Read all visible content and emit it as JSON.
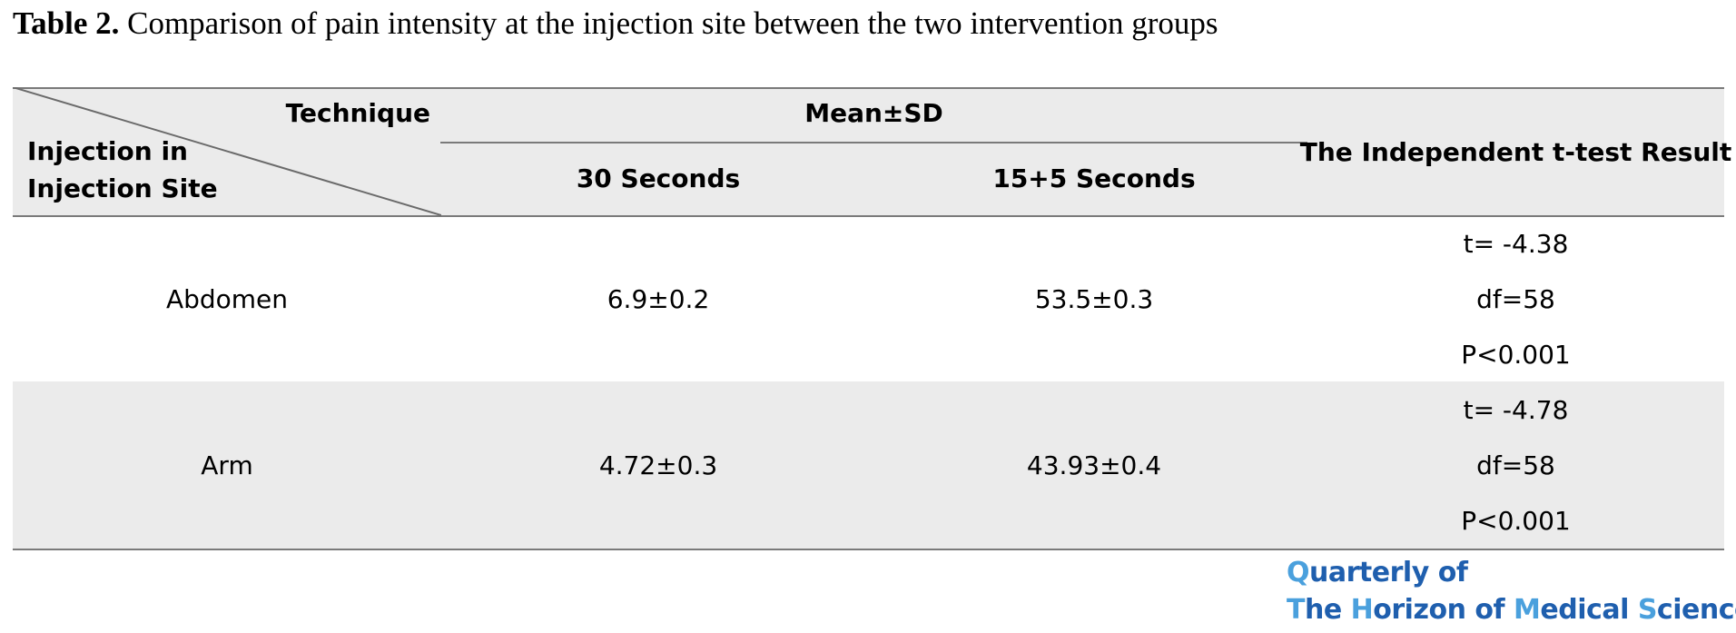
{
  "caption": {
    "label": "Table 2.",
    "text": "Comparison of pain intensity at the injection site between the two intervention groups"
  },
  "table": {
    "header": {
      "technique": "Technique",
      "site_line1": "Injection in",
      "site_line2": "Injection Site",
      "mean_sd": "Mean±SD",
      "col_30": "30 Seconds",
      "col_15_5": "15+5 Seconds",
      "ttest": "The Independent t-test Result"
    },
    "rows": [
      {
        "site": "Abdomen",
        "sec30": "6.9±0.2",
        "sec15_5": "53.5±0.3",
        "t": "t= -4.38",
        "df": "df=58",
        "p": "P<0.001"
      },
      {
        "site": "Arm",
        "sec30": "4.72±0.3",
        "sec15_5": "43.93±0.4",
        "t": "t= -4.78",
        "df": "df=58",
        "p": "P<0.001"
      }
    ]
  },
  "logo": {
    "line1": "Quarterly of",
    "line2": "The Horizon of Medical Sciences"
  }
}
